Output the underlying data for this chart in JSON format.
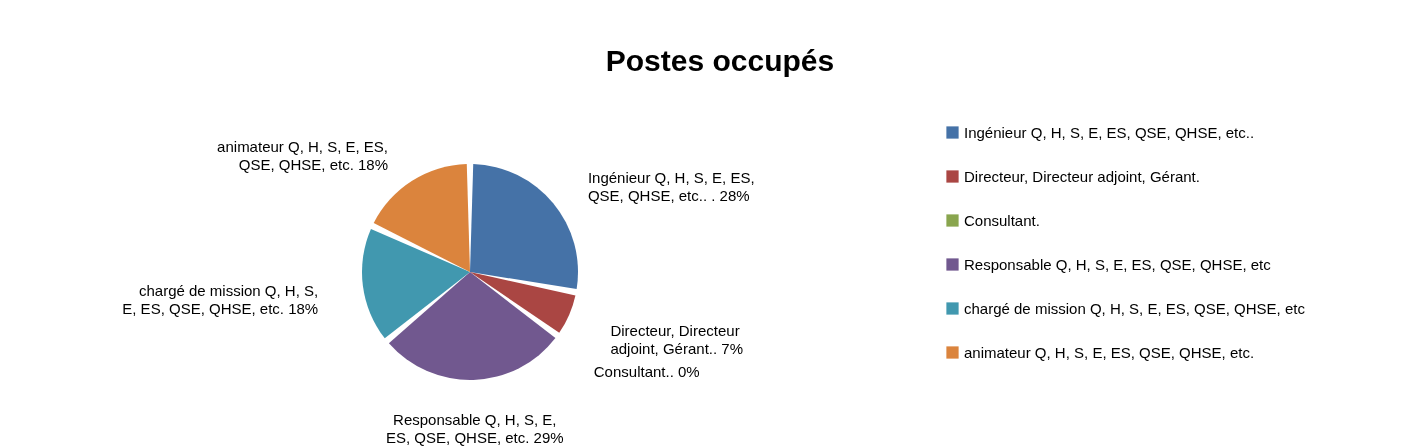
{
  "chart_data": {
    "type": "pie",
    "title": "Postes occupés",
    "categories": [
      "Ingénieur Q, H, S, E, ES, QSE, QHSE, etc..",
      "Directeur, Directeur adjoint, Gérant.",
      "Consultant.",
      "Responsable Q, H, S, E, ES, QSE, QHSE, etc",
      "chargé de mission Q, H, S, E, ES, QSE, QHSE, etc",
      "animateur Q, H, S, E, ES, QSE, QHSE, etc."
    ],
    "values": [
      28,
      7,
      0,
      29,
      18,
      18
    ],
    "colors": [
      "#4572a7",
      "#aa4643",
      "#89a54e",
      "#71588f",
      "#4198af",
      "#db843d"
    ],
    "value_labels": [
      "Ingénieur Q, H, S, E, ES, QSE, QHSE, etc.. . 28%",
      "Directeur, Directeur adjoint, Gérant.. 7%",
      "Consultant.. 0%",
      "Responsable Q, H, S, E, ES, QSE, QHSE, etc. 29%",
      "chargé de mission Q, H, S, E, ES, QSE, QHSE, etc. 18%",
      "animateur Q, H, S, E, ES, QSE, QHSE, etc. 18%"
    ],
    "legend": "right"
  }
}
